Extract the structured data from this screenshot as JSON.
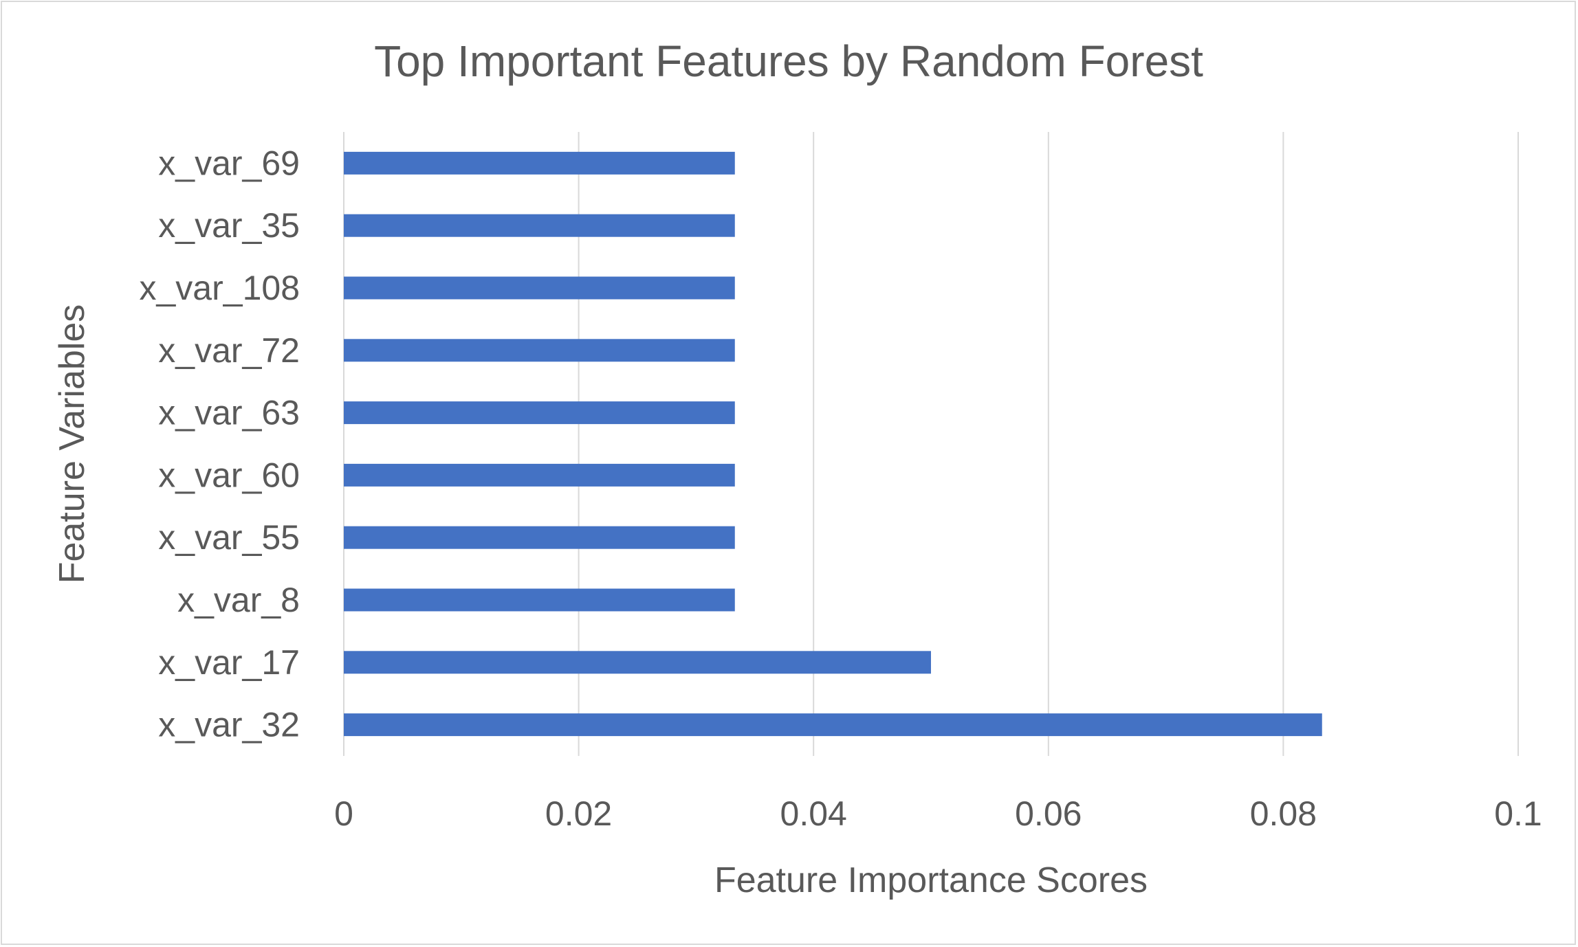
{
  "chart_data": {
    "type": "bar",
    "orientation": "horizontal",
    "title": "Top Important Features by Random Forest",
    "xlabel": "Feature Importance Scores",
    "ylabel": "Feature Variables",
    "categories": [
      "x_var_69",
      "x_var_35",
      "x_var_108",
      "x_var_72",
      "x_var_63",
      "x_var_60",
      "x_var_55",
      "x_var_8",
      "x_var_17",
      "x_var_32"
    ],
    "values": [
      0.0333,
      0.0333,
      0.0333,
      0.0333,
      0.0333,
      0.0333,
      0.0333,
      0.0333,
      0.05,
      0.0833
    ],
    "xlim": [
      0,
      0.1
    ],
    "x_ticks": [
      "0",
      "0.02",
      "0.04",
      "0.06",
      "0.08",
      "0.1"
    ],
    "x_tick_values": [
      0,
      0.02,
      0.04,
      0.06,
      0.08,
      0.1
    ],
    "grid": "vertical",
    "legend": "none",
    "colors": {
      "bar": "#4472c4",
      "grid": "#d9d9d9",
      "text": "#595959",
      "border": "#d9d9d9"
    }
  }
}
